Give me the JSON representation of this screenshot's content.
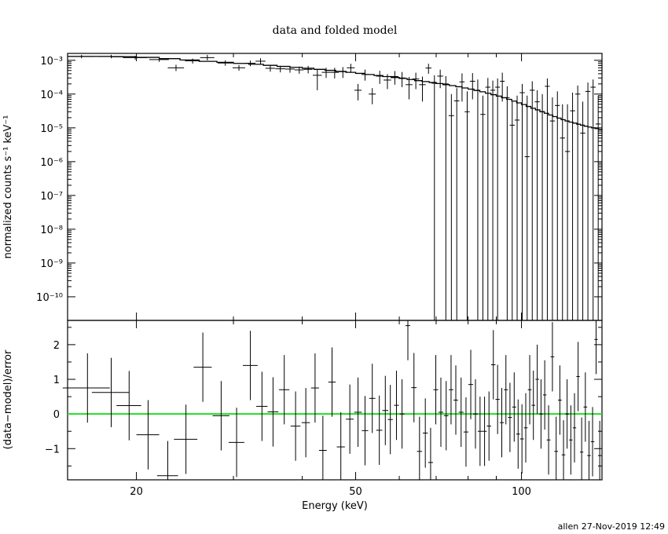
{
  "footer": "allen 27-Nov-2019 12:49",
  "chart_data": [
    {
      "type": "scatter",
      "panel": "top",
      "title": "data and folded model",
      "ylabel": "normalized counts s⁻¹ keV⁻¹",
      "xlabel": "",
      "x_scale": "log",
      "y_scale": "log",
      "xlim": [
        15,
        140
      ],
      "ylim": [
        2e-11,
        0.0016
      ],
      "y_tick_labels": [
        "10⁻³",
        "10⁻⁴",
        "10⁻⁵",
        "10⁻⁶",
        "10⁻⁷",
        "10⁻⁸",
        "10⁻⁹",
        "10⁻¹⁰"
      ],
      "y_tick_values": [
        0.001,
        0.0001,
        1e-05,
        1e-06,
        1e-07,
        1e-08,
        1e-09,
        1e-10
      ],
      "series": [
        {
          "kind": "data",
          "x": [
            15.9,
            18.0,
            19.9,
            22.0,
            23.6,
            25.3,
            26.9,
            29.0,
            30.7,
            32.2,
            33.6,
            35.0,
            36.5,
            38.0,
            39.5,
            41.0,
            42.6,
            44.2,
            45.8,
            47.4,
            49.0,
            50.5,
            52.0,
            53.6,
            55.3,
            57.1,
            58.9,
            60.7,
            62.5,
            64.3,
            66.1,
            67.8,
            69.5,
            71.2,
            72.9,
            74.6,
            76.3,
            78.0,
            79.7,
            81.5,
            83.3,
            85.1,
            86.9,
            88.7,
            90.5,
            92.3,
            94.2,
            96.2,
            98.2,
            100.3,
            102.4,
            104.6,
            106.8,
            109.1,
            111.4,
            113.8,
            116.2,
            118.7,
            121.2,
            123.8,
            126.5,
            129.2,
            132.0,
            134.9,
            137.8
          ],
          "y": [
            0.0013,
            0.0013,
            0.0012,
            0.00105,
            0.0006,
            0.00096,
            0.0012,
            0.00083,
            0.0006,
            0.00082,
            0.00094,
            0.00058,
            0.00056,
            0.00055,
            0.00052,
            0.00054,
            0.00036,
            0.00044,
            0.00044,
            0.00046,
            0.0006,
            0.00013,
            0.00038,
            0.0001,
            0.00034,
            0.00026,
            0.00033,
            0.0003,
            0.00019,
            0.00028,
            0.00019,
            0.00059,
            0.00021,
            0.00034,
            0.0002,
            2.3e-05,
            6.3e-05,
            0.00023,
            3e-05,
            0.00024,
            0.00013,
            2.5e-05,
            0.00016,
            0.00013,
            0.00016,
            0.00024,
            7.8e-05,
            1.2e-05,
            1.7e-05,
            0.00011,
            1.4e-06,
            0.00013,
            5.9e-05,
            3e-05,
            0.00017,
            1.6e-05,
            4.6e-05,
            5e-06,
            2e-06,
            3.2e-05,
            0.0001,
            7e-06,
            0.00012,
            0.00016,
            1.3e-05
          ],
          "xerr": [
            0.9,
            1.0,
            1.0,
            0.9,
            0.8,
            0.8,
            0.8,
            0.9,
            0.8,
            0.7,
            0.7,
            0.7,
            0.75,
            0.75,
            0.75,
            0.75,
            0.8,
            0.8,
            0.8,
            0.8,
            0.8,
            0.75,
            0.75,
            0.8,
            0.85,
            0.9,
            0.9,
            0.9,
            0.9,
            0.9,
            0.9,
            0.85,
            0.85,
            0.85,
            0.85,
            0.85,
            0.85,
            0.85,
            0.85,
            0.9,
            0.9,
            0.9,
            0.9,
            0.9,
            0.9,
            0.9,
            0.95,
            1.0,
            1.0,
            1.05,
            1.05,
            1.1,
            1.1,
            1.15,
            1.15,
            1.2,
            1.2,
            1.25,
            1.25,
            1.3,
            1.35,
            1.35,
            1.4,
            1.45,
            1.45
          ],
          "y_low": [
            0.00115,
            0.00115,
            0.00105,
            0.0009,
            0.00048,
            0.0008,
            0.001,
            0.00069,
            0.00049,
            0.00067,
            0.00075,
            0.00046,
            0.00044,
            0.00043,
            0.0004,
            0.00041,
            0.00013,
            0.0003,
            0.00029,
            0.0003,
            0.00043,
            6.5e-05,
            0.00025,
            5e-05,
            0.0002,
            0.00014,
            0.00019,
            0.00016,
            7e-05,
            0.00014,
            6e-05,
            0.0004,
            2e-11,
            0.00015,
            2e-11,
            2e-11,
            2e-11,
            6e-05,
            2e-11,
            7e-05,
            2e-11,
            2e-11,
            2e-11,
            2e-11,
            2e-11,
            6e-05,
            2e-11,
            2e-11,
            2e-11,
            2e-11,
            2e-11,
            2e-11,
            2e-11,
            2e-11,
            2e-11,
            2e-11,
            2e-11,
            2e-11,
            2e-11,
            2e-11,
            2e-11,
            2e-11,
            2e-11,
            2e-11,
            2e-11
          ],
          "y_high": [
            0.00145,
            0.00145,
            0.00135,
            0.0012,
            0.00074,
            0.00112,
            0.00145,
            0.001,
            0.00072,
            0.00098,
            0.00115,
            0.00071,
            0.00069,
            0.00068,
            0.00065,
            0.00068,
            0.00052,
            0.0006,
            0.0006,
            0.00063,
            0.00079,
            0.0002,
            0.00053,
            0.00015,
            0.00049,
            0.00039,
            0.00048,
            0.00045,
            0.00032,
            0.00043,
            0.00033,
            0.00079,
            0.00036,
            0.00053,
            0.00034,
            0.0001,
            0.00015,
            0.00041,
            0.00012,
            0.00042,
            0.00027,
            9e-05,
            0.0003,
            0.00025,
            0.00029,
            0.00043,
            0.00017,
            6e-05,
            9e-05,
            0.0002,
            9e-05,
            0.00024,
            0.00013,
            0.0001,
            0.00029,
            8e-05,
            0.00012,
            5e-05,
            5e-05,
            0.00011,
            0.00018,
            6e-05,
            0.00022,
            0.00027,
            9e-05
          ]
        },
        {
          "kind": "model",
          "x": [
            15,
            16,
            18,
            20,
            22,
            24,
            26,
            28,
            30,
            32,
            34,
            36,
            38,
            40,
            42,
            44,
            46,
            48,
            50,
            52,
            54,
            56,
            58,
            60,
            62,
            64,
            66,
            68,
            70,
            72,
            74,
            76,
            78,
            80,
            82,
            84,
            86,
            88,
            90,
            92,
            94,
            96,
            98,
            100,
            102,
            104,
            106,
            108,
            110,
            112,
            114,
            116,
            118,
            120,
            122,
            124,
            126,
            128,
            130,
            132,
            134,
            136,
            138,
            140
          ],
          "y": [
            0.0013,
            0.0013,
            0.00128,
            0.00122,
            0.00112,
            0.00102,
            0.00093,
            0.00087,
            0.00081,
            0.00076,
            0.00071,
            0.00066,
            0.00062,
            0.00058,
            0.00054,
            0.000505,
            0.00047,
            0.00044,
            0.00041,
            0.00038,
            0.000355,
            0.00033,
            0.00031,
            0.00029,
            0.00027,
            0.00025,
            0.000235,
            0.00022,
            0.000205,
            0.00019,
            0.000178,
            0.000165,
            0.000152,
            0.00014,
            0.000128,
            0.000117,
            0.000106,
            9.6e-05,
            8.7e-05,
            7.8e-05,
            7e-05,
            6.2e-05,
            5.5e-05,
            4.9e-05,
            4.3e-05,
            3.8e-05,
            3.4e-05,
            3e-05,
            2.7e-05,
            2.4e-05,
            2.15e-05,
            1.95e-05,
            1.75e-05,
            1.6e-05,
            1.48e-05,
            1.38e-05,
            1.28e-05,
            1.2e-05,
            1.12e-05,
            1.06e-05,
            1e-05,
            9.5e-06,
            9e-06,
            8.6e-06
          ]
        }
      ]
    },
    {
      "type": "scatter",
      "panel": "bottom",
      "xlabel": "Energy (keV)",
      "ylabel": "(data−model)/error",
      "x_scale": "log",
      "xlim": [
        15,
        140
      ],
      "ylim": [
        -1.9,
        2.7
      ],
      "x_tick_labels": [
        "20",
        "50",
        "100"
      ],
      "x_tick_values": [
        20,
        50,
        100
      ],
      "y_tick_labels": [
        "2",
        "1",
        "0",
        "−1"
      ],
      "y_tick_values": [
        2,
        1,
        0,
        -1
      ],
      "zero_line_color": "#22dd22",
      "series": [
        {
          "kind": "residuals",
          "x": [
            16.3,
            18.0,
            19.4,
            21.0,
            22.8,
            24.6,
            26.4,
            28.5,
            30.4,
            32.2,
            33.8,
            35.4,
            37.1,
            38.9,
            40.6,
            42.2,
            43.6,
            45.3,
            47.0,
            48.8,
            50.5,
            52.0,
            53.6,
            55.2,
            56.6,
            57.8,
            59.3,
            60.7,
            62.2,
            63.8,
            65.3,
            66.9,
            68.4,
            69.9,
            71.4,
            73.0,
            74.5,
            76.0,
            77.7,
            79.3,
            80.9,
            82.5,
            84.1,
            85.7,
            87.3,
            88.9,
            90.5,
            92.1,
            93.7,
            95.3,
            97.0,
            98.6,
            100.2,
            101.8,
            103.5,
            105.1,
            106.8,
            108.5,
            110.2,
            112.0,
            113.8,
            115.6,
            117.4,
            119.2,
            121.0,
            122.9,
            124.8,
            126.7,
            128.6,
            130.6,
            132.6,
            134.6,
            136.6,
            138.7
          ],
          "y": [
            0.75,
            0.62,
            0.24,
            -0.6,
            -1.78,
            -0.73,
            1.35,
            -0.05,
            -0.82,
            1.4,
            0.22,
            0.06,
            0.7,
            -0.35,
            -0.25,
            0.75,
            -1.05,
            0.92,
            -0.95,
            -0.15,
            0.05,
            -0.48,
            0.45,
            -0.47,
            0.1,
            -0.16,
            0.25,
            0.0,
            2.55,
            0.76,
            -1.08,
            -0.55,
            -1.4,
            0.7,
            0.05,
            -0.05,
            0.7,
            0.4,
            0.05,
            -0.52,
            0.85,
            0.0,
            -0.5,
            -0.5,
            -0.35,
            1.42,
            0.42,
            -0.25,
            0.7,
            -0.1,
            0.2,
            -0.58,
            -0.72,
            -0.4,
            0.7,
            0.25,
            1.0,
            0.0,
            0.55,
            -0.75,
            1.65,
            -1.08,
            0.4,
            -1.18,
            0.0,
            -0.75,
            -0.4,
            1.08,
            -1.1,
            0.2,
            -1.2,
            -0.8,
            2.15,
            -1.2
          ],
          "xerr": [
            1.6,
            1.4,
            1.0,
            1.0,
            1.0,
            1.2,
            1.0,
            1.0,
            1.0,
            1.0,
            0.8,
            0.8,
            0.8,
            0.8,
            0.7,
            0.7,
            0.7,
            0.7,
            0.8,
            0.8,
            0.8,
            0.7,
            0.7,
            0.7,
            0.7,
            0.6,
            0.6,
            0.6,
            0.6,
            0.7,
            0.7,
            0.7,
            0.7,
            0.7,
            0.7,
            0.7,
            0.7,
            0.7,
            0.8,
            0.8,
            0.8,
            0.8,
            0.8,
            0.8,
            0.8,
            0.8,
            0.8,
            0.8,
            0.8,
            0.8,
            0.8,
            0.8,
            0.8,
            0.8,
            0.8,
            0.8,
            0.8,
            0.8,
            0.8,
            0.9,
            0.9,
            0.9,
            0.9,
            0.9,
            0.9,
            0.9,
            0.9,
            0.9,
            0.9,
            1.0,
            1.0,
            1.0,
            1.0,
            1.0
          ],
          "yerr": [
            1.0,
            1.0,
            1.0,
            1.0,
            1.0,
            1.0,
            1.0,
            1.0,
            1.0,
            1.0,
            1.0,
            1.0,
            1.0,
            1.0,
            1.0,
            1.0,
            1.0,
            1.0,
            1.0,
            1.0,
            1.0,
            1.0,
            1.0,
            1.0,
            1.0,
            1.0,
            1.0,
            1.0,
            1.0,
            1.0,
            1.0,
            1.0,
            1.0,
            1.0,
            1.0,
            1.0,
            1.0,
            1.0,
            1.0,
            1.0,
            1.0,
            1.0,
            1.0,
            1.0,
            1.0,
            1.0,
            1.0,
            1.0,
            1.0,
            1.0,
            1.0,
            1.0,
            1.0,
            1.0,
            1.0,
            1.0,
            1.0,
            1.0,
            1.0,
            1.0,
            1.0,
            1.0,
            1.0,
            1.0,
            1.0,
            1.0,
            1.0,
            1.0,
            1.0,
            1.0,
            1.0,
            1.0,
            1.0,
            1.0
          ]
        }
      ]
    }
  ]
}
